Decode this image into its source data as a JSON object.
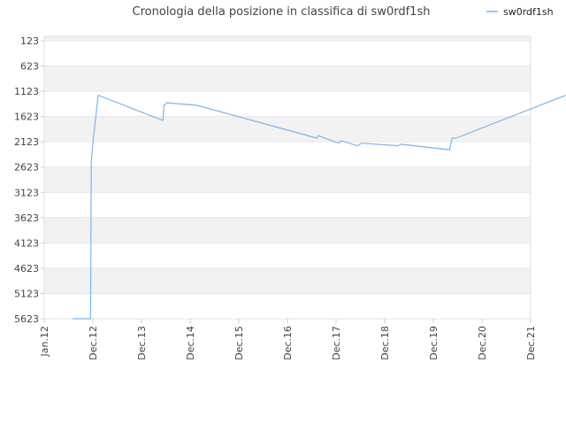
{
  "chart_data": {
    "type": "line",
    "title": "Cronologia della posizione in classifica di sw0rdf1sh",
    "xlabel": "",
    "ylabel": "",
    "x_tick_labels": [
      "Jan.12",
      "Dec.12",
      "Dec.13",
      "Dec.14",
      "Dec.15",
      "Dec.16",
      "Dec.17",
      "Dec.18",
      "Dec.19",
      "Dec.20",
      "Dec.21"
    ],
    "y_tick_labels": [
      "123",
      "623",
      "1123",
      "1623",
      "2123",
      "2623",
      "3123",
      "3623",
      "4123",
      "4623",
      "5123",
      "5623"
    ],
    "ylim": [
      123,
      5623
    ],
    "y_inverted": true,
    "grid": "horizontal alternating bands",
    "legend": "top-right",
    "series": [
      {
        "name": "sw0rdf1sh",
        "color": "#7cb5ec",
        "points": [
          [
            "2012-07-15",
            5623
          ],
          [
            "2012-11-15",
            5623
          ],
          [
            "2012-11-20",
            2500
          ],
          [
            "2012-12-01",
            2150
          ],
          [
            "2013-01-10",
            1200
          ],
          [
            "2014-05-10",
            1700
          ],
          [
            "2014-05-20",
            1400
          ],
          [
            "2014-06-10",
            1350
          ],
          [
            "2015-01-20",
            1400
          ],
          [
            "2017-07-10",
            2050
          ],
          [
            "2017-07-20",
            2000
          ],
          [
            "2017-12-20",
            2150
          ],
          [
            "2018-01-10",
            2100
          ],
          [
            "2018-05-10",
            2200
          ],
          [
            "2018-06-10",
            2150
          ],
          [
            "2019-03-10",
            2200
          ],
          [
            "2019-04-01",
            2170
          ],
          [
            "2020-04-01",
            2280
          ],
          [
            "2020-04-20",
            2050
          ],
          [
            "2020-05-20",
            2050
          ],
          [
            "2023-06-10",
            900
          ]
        ]
      }
    ]
  },
  "colors": {
    "line": "#7cb5ec",
    "band": "#f2f2f2",
    "grid": "#e6e6e6",
    "axis": "#cccccc"
  }
}
